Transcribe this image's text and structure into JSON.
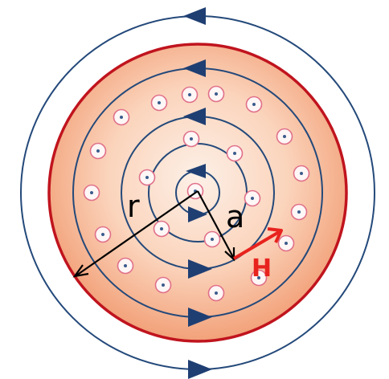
{
  "figure": {
    "description_free": true,
    "labels": {
      "radius_outer": "r",
      "radius_inner": "a",
      "field": "H"
    },
    "colors": {
      "background": "#ffffff",
      "conductor_fill_center": "#fdebe0",
      "conductor_fill_edge": "#f4a87e",
      "conductor_border": "#c0141e",
      "field_lines": "#24497a",
      "arrowheads": "#1f3f73",
      "radius_lines": "#000000",
      "field_vector": "#e8231e",
      "current_dot_ring": "#e0708a",
      "current_dot_center": "#3a5c8c"
    },
    "symbols": {
      "current_marker": "current-out-of-page-icon",
      "field_direction": "counterclockwise-arrow-icon"
    },
    "field_circle_count": 5,
    "current_marker_count": 34
  }
}
